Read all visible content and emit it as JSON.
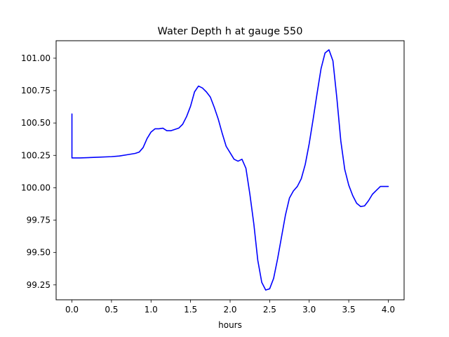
{
  "chart_data": {
    "type": "line",
    "title": "Water Depth h at gauge 550",
    "xlabel": "hours",
    "ylabel": "",
    "xlim": [
      -0.2,
      4.2
    ],
    "ylim": [
      99.135,
      101.135
    ],
    "xticks": [
      0.0,
      0.5,
      1.0,
      1.5,
      2.0,
      2.5,
      3.0,
      3.5,
      4.0
    ],
    "xtick_labels": [
      "0.0",
      "0.5",
      "1.0",
      "1.5",
      "2.0",
      "2.5",
      "3.0",
      "3.5",
      "4.0"
    ],
    "yticks": [
      99.25,
      99.5,
      99.75,
      100.0,
      100.25,
      100.5,
      100.75,
      101.0
    ],
    "ytick_labels": [
      "99.25",
      "99.50",
      "99.75",
      "100.00",
      "100.25",
      "100.50",
      "100.75",
      "101.00"
    ],
    "grid": false,
    "series": [
      {
        "color": "#0000ff",
        "x": [
          0.0,
          0.0,
          0.1,
          0.3,
          0.5,
          0.6,
          0.7,
          0.8,
          0.85,
          0.9,
          0.95,
          1.0,
          1.05,
          1.1,
          1.15,
          1.2,
          1.25,
          1.3,
          1.35,
          1.4,
          1.45,
          1.5,
          1.55,
          1.6,
          1.65,
          1.7,
          1.75,
          1.8,
          1.85,
          1.9,
          1.95,
          2.0,
          2.05,
          2.1,
          2.15,
          2.2,
          2.25,
          2.3,
          2.35,
          2.4,
          2.45,
          2.5,
          2.55,
          2.6,
          2.65,
          2.7,
          2.75,
          2.8,
          2.85,
          2.9,
          2.95,
          3.0,
          3.05,
          3.1,
          3.15,
          3.2,
          3.25,
          3.3,
          3.35,
          3.4,
          3.45,
          3.5,
          3.55,
          3.6,
          3.65,
          3.7,
          3.75,
          3.8,
          3.85,
          3.9,
          3.95,
          4.0
        ],
        "values": [
          100.57,
          100.23,
          100.23,
          100.235,
          100.24,
          100.245,
          100.255,
          100.265,
          100.275,
          100.31,
          100.38,
          100.43,
          100.455,
          100.455,
          100.46,
          100.44,
          100.44,
          100.45,
          100.46,
          100.49,
          100.55,
          100.63,
          100.74,
          100.785,
          100.77,
          100.74,
          100.7,
          100.62,
          100.53,
          100.42,
          100.32,
          100.27,
          100.22,
          100.205,
          100.22,
          100.15,
          99.95,
          99.72,
          99.44,
          99.27,
          99.21,
          99.22,
          99.3,
          99.45,
          99.62,
          99.79,
          99.92,
          99.975,
          100.01,
          100.07,
          100.18,
          100.34,
          100.53,
          100.73,
          100.92,
          101.04,
          101.065,
          100.98,
          100.69,
          100.36,
          100.14,
          100.02,
          99.94,
          99.88,
          99.855,
          99.86,
          99.9,
          99.95,
          99.98,
          100.01,
          100.01,
          100.01
        ]
      }
    ]
  }
}
